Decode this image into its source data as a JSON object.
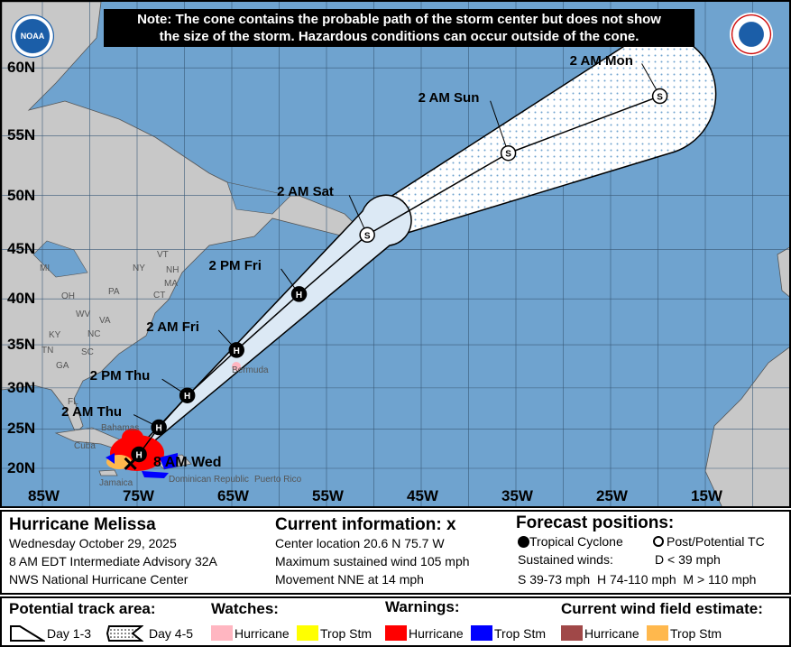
{
  "note": {
    "line1": "Note: The cone contains the probable path of the storm center but does not show",
    "line2": "the size of the storm. Hazardous conditions can occur outside of the cone."
  },
  "logos": {
    "left": "NOAA",
    "right": "NATIONAL WEATHER SERVICE"
  },
  "map": {
    "lat_labels": [
      "60N",
      "55N",
      "50N",
      "45N",
      "40N",
      "35N",
      "30N",
      "25N",
      "20N"
    ],
    "lat_values": [
      60,
      55,
      50,
      45,
      40,
      35,
      30,
      25,
      20
    ],
    "lon_labels": [
      "85W",
      "75W",
      "65W",
      "55W",
      "45W",
      "35W",
      "25W",
      "15W"
    ],
    "lon_values": [
      85,
      75,
      65,
      55,
      45,
      35,
      25,
      15
    ],
    "place_labels": [
      "MI",
      "NY",
      "VT",
      "NH",
      "MA",
      "CT",
      "PA",
      "OH",
      "WV",
      "VA",
      "KY",
      "TN",
      "NC",
      "SC",
      "GA",
      "FL",
      "Cuba",
      "Jamaica",
      "Bermuda",
      "Bahamas",
      "Dominican Republic",
      "Puerto Rico"
    ],
    "current_position": {
      "lat": 20.6,
      "lon": 75.7,
      "label": "8 AM Wed"
    },
    "forecast_points": [
      {
        "label": "",
        "type": "H",
        "lat": 21.8,
        "lon": 74.8
      },
      {
        "label": "2 AM Thu",
        "type": "H",
        "lat": 25.2,
        "lon": 72.7
      },
      {
        "label": "2 PM Thu",
        "type": "H",
        "lat": 29.1,
        "lon": 69.7
      },
      {
        "label": "2 AM Fri",
        "type": "H",
        "lat": 34.4,
        "lon": 64.5
      },
      {
        "label": "2 PM Fri",
        "type": "H",
        "lat": 40.5,
        "lon": 57.9
      },
      {
        "label": "2 AM Sat",
        "type": "S",
        "lat": 46.4,
        "lon": 50.7
      },
      {
        "label": "2 AM Sun",
        "type": "S",
        "lat": 53.6,
        "lon": 35.8
      },
      {
        "label": "2 AM Mon",
        "type": "S",
        "lat": 58.0,
        "lon": 19.8
      }
    ],
    "colors": {
      "ocean": "#6fa3cf",
      "land": "#c8c8c8",
      "cone_day13": "#dce9f5",
      "cone_day45": "#ffffff"
    }
  },
  "info": {
    "storm_name": "Hurricane Melissa",
    "date": "Wednesday October 29, 2025",
    "advisory": "8 AM EDT Intermediate Advisory 32A",
    "center": "NWS National Hurricane Center",
    "current_title": "Current information: ",
    "current_symbol": "x",
    "location": "Center location 20.6 N 75.7 W",
    "max_wind": "Maximum sustained wind 105 mph",
    "movement": "Movement NNE at 14 mph",
    "forecast_title": "Forecast positions:",
    "tc_label": "Tropical Cyclone",
    "post_label": "Post/Potential TC",
    "sustained_label": "Sustained winds:",
    "d_range": "D < 39 mph",
    "ranges": "S 39-73 mph  H 74-110 mph  M > 110 mph"
  },
  "legend": {
    "track_title": "Potential track area:",
    "day13": "Day 1-3",
    "day45": "Day 4-5",
    "watches_title": "Watches:",
    "warnings_title": "Warnings:",
    "wind_title": "Current wind field estimate:",
    "watch_items": [
      {
        "label": "Hurricane",
        "color": "#ffb6c1"
      },
      {
        "label": "Trop Stm",
        "color": "#ffff00"
      }
    ],
    "warning_items": [
      {
        "label": "Hurricane",
        "color": "#ff0000"
      },
      {
        "label": "Trop Stm",
        "color": "#0000ff"
      }
    ],
    "wind_items": [
      {
        "label": "Hurricane",
        "color": "#a04848"
      },
      {
        "label": "Trop Stm",
        "color": "#ffb84d"
      }
    ]
  }
}
